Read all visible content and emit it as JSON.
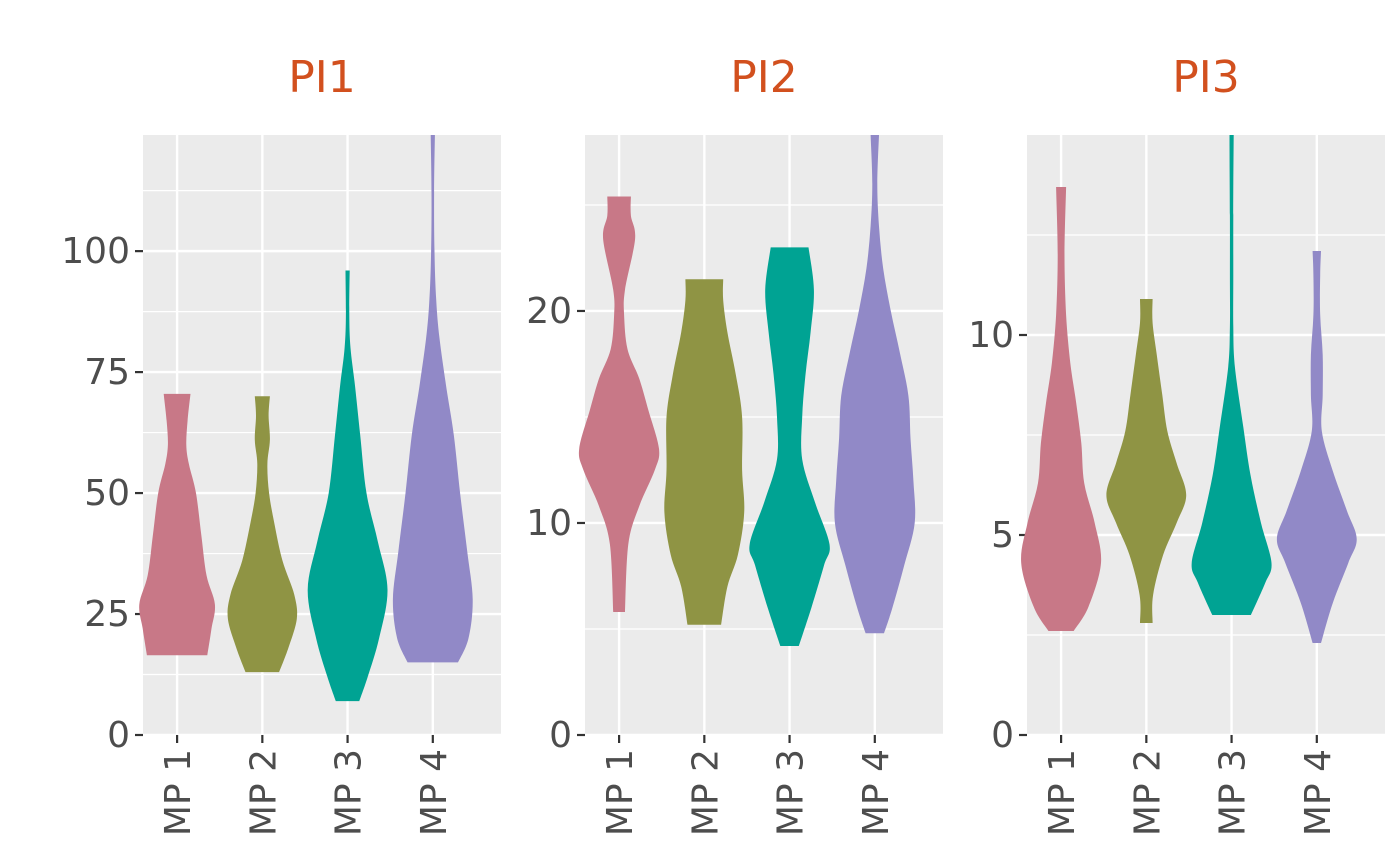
{
  "colors": {
    "title": "#d2501e",
    "panel_bg": "#ebebeb",
    "grid": "#ffffff",
    "tick_text": "#4d4d4d",
    "tick_mark": "#333333",
    "series": {
      "MP 1": "#c87887",
      "MP 2": "#8f9444",
      "MP 3": "#00a393",
      "MP 4": "#9189c7"
    }
  },
  "chart_data": [
    {
      "type": "violin",
      "title": "PI1",
      "categories": [
        "MP 1",
        "MP 2",
        "MP 3",
        "MP 4"
      ],
      "ylim": [
        0,
        124
      ],
      "yticks": [
        0,
        25,
        50,
        75,
        100
      ],
      "ytick_labels": [
        "0",
        "25",
        "50",
        "75",
        "100"
      ],
      "grid": true,
      "series": [
        {
          "category": "MP 1",
          "min": 16.5,
          "max": 70.5,
          "profile": [
            [
              16.5,
              0.72
            ],
            [
              22,
              0.82
            ],
            [
              27,
              0.9
            ],
            [
              33,
              0.7
            ],
            [
              41,
              0.58
            ],
            [
              50,
              0.45
            ],
            [
              56,
              0.28
            ],
            [
              60,
              0.22
            ],
            [
              65,
              0.25
            ],
            [
              70.5,
              0.32
            ]
          ]
        },
        {
          "category": "MP 2",
          "min": 13,
          "max": 70,
          "profile": [
            [
              13,
              0.4
            ],
            [
              18,
              0.62
            ],
            [
              24,
              0.82
            ],
            [
              29,
              0.76
            ],
            [
              36,
              0.48
            ],
            [
              44,
              0.28
            ],
            [
              50,
              0.16
            ],
            [
              56,
              0.12
            ],
            [
              61,
              0.18
            ],
            [
              66,
              0.15
            ],
            [
              70,
              0.18
            ]
          ]
        },
        {
          "category": "MP 3",
          "min": 7,
          "max": 96,
          "profile": [
            [
              7,
              0.28
            ],
            [
              12,
              0.48
            ],
            [
              20,
              0.75
            ],
            [
              30,
              0.95
            ],
            [
              40,
              0.72
            ],
            [
              50,
              0.45
            ],
            [
              62,
              0.3
            ],
            [
              72,
              0.18
            ],
            [
              80,
              0.07
            ],
            [
              87,
              0.04
            ],
            [
              96,
              0.05
            ]
          ]
        },
        {
          "category": "MP 4",
          "min": 15,
          "max": 124,
          "profile": [
            [
              15,
              0.6
            ],
            [
              20,
              0.85
            ],
            [
              28,
              0.95
            ],
            [
              38,
              0.82
            ],
            [
              50,
              0.65
            ],
            [
              62,
              0.5
            ],
            [
              72,
              0.32
            ],
            [
              82,
              0.16
            ],
            [
              90,
              0.08
            ],
            [
              100,
              0.04
            ],
            [
              112,
              0.03
            ],
            [
              124,
              0.05
            ]
          ]
        }
      ]
    },
    {
      "type": "violin",
      "title": "PI2",
      "categories": [
        "MP 1",
        "MP 2",
        "MP 3",
        "MP 4"
      ],
      "ylim": [
        0,
        28.3
      ],
      "yticks": [
        0,
        10,
        20
      ],
      "ytick_labels": [
        "0",
        "10",
        "20"
      ],
      "grid": true,
      "series": [
        {
          "category": "MP 1",
          "min": 5.8,
          "max": 25.4,
          "profile": [
            [
              5.8,
              0.14
            ],
            [
              9,
              0.22
            ],
            [
              10.8,
              0.48
            ],
            [
              12.5,
              0.85
            ],
            [
              13.5,
              0.95
            ],
            [
              15.3,
              0.7
            ],
            [
              16.8,
              0.48
            ],
            [
              18.2,
              0.2
            ],
            [
              19.8,
              0.12
            ],
            [
              21,
              0.14
            ],
            [
              23.4,
              0.38
            ],
            [
              24.5,
              0.28
            ],
            [
              25.4,
              0.28
            ]
          ]
        },
        {
          "category": "MP 2",
          "min": 5.2,
          "max": 21.5,
          "profile": [
            [
              5.2,
              0.4
            ],
            [
              7,
              0.55
            ],
            [
              8.5,
              0.8
            ],
            [
              10.5,
              0.95
            ],
            [
              12.5,
              0.9
            ],
            [
              15,
              0.9
            ],
            [
              17,
              0.75
            ],
            [
              19,
              0.55
            ],
            [
              20.5,
              0.45
            ],
            [
              21.5,
              0.45
            ]
          ]
        },
        {
          "category": "MP 3",
          "min": 4.2,
          "max": 23,
          "profile": [
            [
              4.2,
              0.22
            ],
            [
              6,
              0.52
            ],
            [
              8,
              0.82
            ],
            [
              9,
              0.95
            ],
            [
              11,
              0.6
            ],
            [
              13,
              0.3
            ],
            [
              15,
              0.3
            ],
            [
              17,
              0.38
            ],
            [
              19,
              0.5
            ],
            [
              21,
              0.58
            ],
            [
              23,
              0.45
            ]
          ]
        },
        {
          "category": "MP 4",
          "min": 4.8,
          "max": 28.3,
          "profile": [
            [
              4.8,
              0.22
            ],
            [
              6,
              0.42
            ],
            [
              8,
              0.7
            ],
            [
              10,
              0.95
            ],
            [
              12,
              0.92
            ],
            [
              14,
              0.85
            ],
            [
              16,
              0.8
            ],
            [
              18,
              0.6
            ],
            [
              20,
              0.38
            ],
            [
              22,
              0.2
            ],
            [
              24,
              0.1
            ],
            [
              26,
              0.06
            ],
            [
              28.3,
              0.1
            ]
          ]
        }
      ]
    },
    {
      "type": "violin",
      "title": "PI3",
      "categories": [
        "MP 1",
        "MP 2",
        "MP 3",
        "MP 4"
      ],
      "ylim": [
        0,
        15
      ],
      "yticks": [
        0,
        5,
        10
      ],
      "ytick_labels": [
        "0",
        "5",
        "10"
      ],
      "grid": true,
      "series": [
        {
          "category": "MP 1",
          "min": 2.6,
          "max": 13.7,
          "profile": [
            [
              2.6,
              0.3
            ],
            [
              3.2,
              0.65
            ],
            [
              4.3,
              0.95
            ],
            [
              5.3,
              0.8
            ],
            [
              6.3,
              0.55
            ],
            [
              7.3,
              0.48
            ],
            [
              8.3,
              0.36
            ],
            [
              9.3,
              0.22
            ],
            [
              10.5,
              0.12
            ],
            [
              12,
              0.08
            ],
            [
              13.7,
              0.12
            ]
          ]
        },
        {
          "category": "MP 2",
          "min": 2.8,
          "max": 10.9,
          "profile": [
            [
              2.8,
              0.15
            ],
            [
              3.5,
              0.16
            ],
            [
              4.5,
              0.4
            ],
            [
              5.3,
              0.72
            ],
            [
              6,
              0.95
            ],
            [
              6.8,
              0.72
            ],
            [
              7.6,
              0.5
            ],
            [
              8.5,
              0.38
            ],
            [
              9.5,
              0.25
            ],
            [
              10.3,
              0.15
            ],
            [
              10.9,
              0.15
            ]
          ]
        },
        {
          "category": "MP 3",
          "min": 3,
          "max": 15,
          "profile": [
            [
              3,
              0.46
            ],
            [
              3.8,
              0.8
            ],
            [
              4.3,
              0.95
            ],
            [
              5.3,
              0.7
            ],
            [
              6.5,
              0.45
            ],
            [
              7.7,
              0.28
            ],
            [
              9.2,
              0.08
            ],
            [
              10.2,
              0.04
            ],
            [
              11.5,
              0.04
            ],
            [
              13,
              0.04
            ],
            [
              15,
              0.05
            ]
          ]
        },
        {
          "category": "MP 4",
          "min": 2.3,
          "max": 12.1,
          "profile": [
            [
              2.3,
              0.1
            ],
            [
              3.3,
              0.38
            ],
            [
              4.3,
              0.75
            ],
            [
              4.9,
              0.95
            ],
            [
              5.6,
              0.72
            ],
            [
              6.6,
              0.38
            ],
            [
              7.6,
              0.12
            ],
            [
              8.5,
              0.14
            ],
            [
              9.5,
              0.14
            ],
            [
              10.5,
              0.08
            ],
            [
              11.5,
              0.08
            ],
            [
              12.1,
              0.1
            ]
          ]
        }
      ]
    }
  ]
}
